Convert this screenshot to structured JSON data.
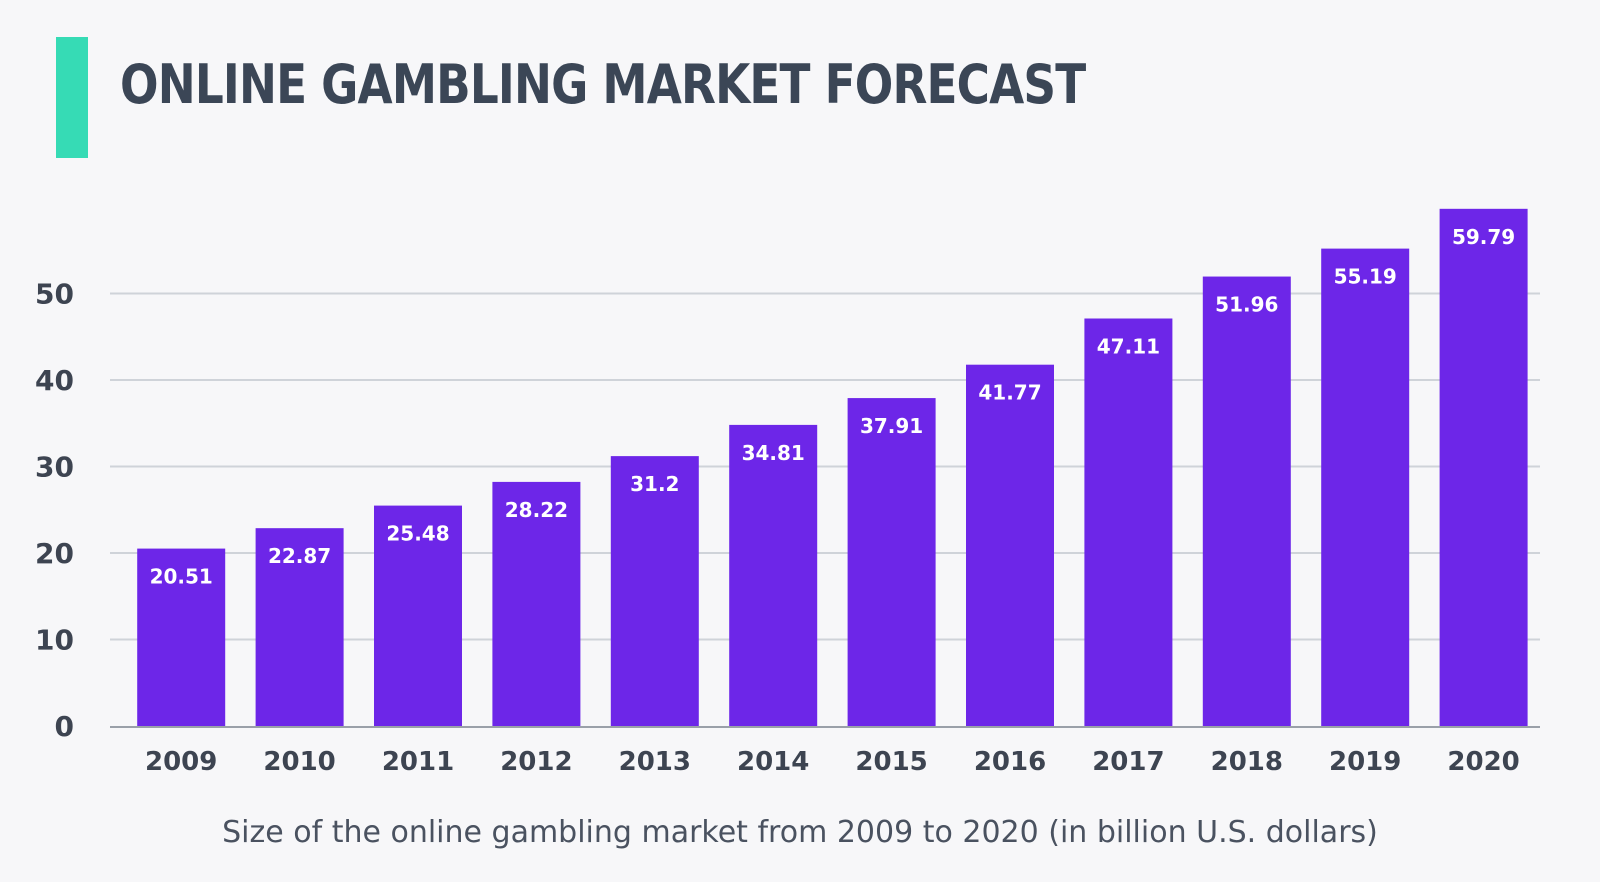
{
  "header": {
    "title": "ONLINE GAMBLING MARKET FORECAST"
  },
  "caption": "Size of the online gambling market from 2009 to 2020 (in billion U.S. dollars)",
  "colors": {
    "accent": "#36dbb5",
    "bar": "#6d26e8",
    "title": "#3b4656",
    "axis_text": "#3d4451",
    "caption": "#4a5260",
    "grid": "#cfd3d9",
    "background": "#f7f7f9"
  },
  "chart_data": {
    "type": "bar",
    "title": "ONLINE GAMBLING MARKET FORECAST",
    "xlabel": "",
    "ylabel": "",
    "categories": [
      "2009",
      "2010",
      "2011",
      "2012",
      "2013",
      "2014",
      "2015",
      "2016",
      "2017",
      "2018",
      "2019",
      "2020"
    ],
    "values": [
      20.51,
      22.87,
      25.48,
      28.22,
      31.2,
      34.81,
      37.91,
      41.77,
      47.11,
      51.96,
      55.19,
      59.79
    ],
    "value_labels": [
      "20.51",
      "22.87",
      "25.48",
      "28.22",
      "31.2",
      "34.81",
      "37.91",
      "41.77",
      "47.11",
      "51.96",
      "55.19",
      "59.79"
    ],
    "y_ticks": [
      0,
      10,
      20,
      30,
      40,
      50
    ],
    "ylim": [
      0,
      60
    ],
    "grid": true,
    "legend": "none"
  }
}
